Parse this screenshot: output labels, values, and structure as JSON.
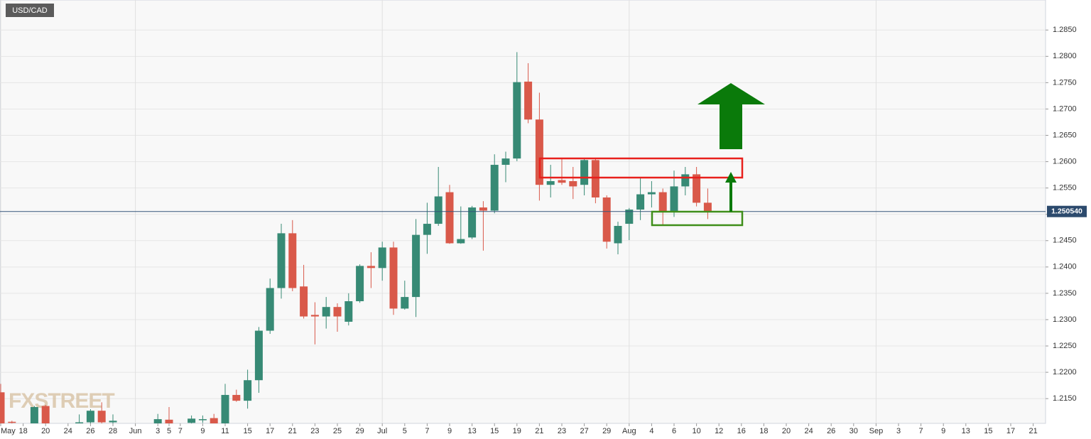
{
  "chart_data": {
    "type": "candlestick",
    "title": "USD/CAD",
    "watermark": "FXSTREET",
    "categories": [
      "May",
      null,
      "18",
      null,
      "20",
      null,
      "24",
      null,
      "26",
      null,
      "28",
      null,
      "Jun",
      null,
      "3",
      "5",
      "7",
      null,
      "9",
      null,
      "11",
      null,
      "15",
      null,
      "17",
      null,
      "21",
      null,
      "23",
      null,
      "25",
      null,
      "29",
      null,
      "Jul",
      null,
      "5",
      null,
      "7",
      null,
      "9",
      null,
      "13",
      null,
      "15",
      null,
      "19",
      null,
      "21",
      null,
      "23",
      null,
      "27",
      null,
      "29",
      null,
      "Aug",
      null,
      "4",
      null,
      "6",
      null,
      "10",
      null,
      "12",
      null,
      "16",
      null,
      "18",
      null,
      "20",
      null,
      "24",
      null,
      "26",
      null,
      "30",
      null,
      "Sep",
      null,
      "3",
      null,
      "7",
      null,
      "9",
      null,
      "13",
      null,
      "15",
      null,
      "17",
      null,
      "21",
      null
    ],
    "open": [
      1.2162,
      1.2106,
      null,
      1.2095,
      1.2136,
      null,
      null,
      1.21,
      1.2105,
      1.2127,
      1.2105,
      null,
      null,
      null,
      1.2103,
      1.211,
      null,
      1.2104,
      1.211,
      1.2113,
      1.2103,
      1.2157,
      1.2146,
      1.2185,
      1.2279,
      1.236,
      1.2464,
      1.2363,
      1.2309,
      1.2306,
      1.2324,
      1.2296,
      1.2335,
      1.2402,
      1.2398,
      1.2437,
      1.2321,
      1.2343,
      1.2461,
      1.2482,
      1.2542,
      1.2445,
      1.2456,
      1.2513,
      1.2507,
      1.2594,
      1.2606,
      1.2752,
      1.268,
      1.2556,
      1.2565,
      1.2563,
      1.2556,
      1.2603,
      1.2532,
      1.2445,
      1.2482,
      1.2509,
      1.2538,
      1.2542,
      1.2505,
      1.2553,
      1.2576,
      1.2522,
      null,
      null,
      null,
      null,
      null,
      null,
      null,
      null,
      null,
      null,
      null,
      null,
      null,
      null,
      null,
      null,
      null,
      null,
      null,
      null,
      null,
      null,
      null,
      null,
      null,
      null,
      null,
      null,
      null,
      null
    ],
    "high": [
      1.2178,
      1.2108,
      null,
      1.2136,
      1.2138,
      null,
      null,
      1.212,
      1.213,
      1.2143,
      1.212,
      null,
      null,
      null,
      1.2121,
      1.2134,
      null,
      1.2118,
      1.2118,
      1.2121,
      1.2178,
      1.2167,
      1.2205,
      1.2286,
      1.2378,
      1.2482,
      1.2489,
      1.2404,
      1.2333,
      1.2343,
      1.2331,
      1.235,
      1.2405,
      1.2428,
      1.2448,
      1.2448,
      1.2374,
      1.2491,
      1.2522,
      1.259,
      1.2556,
      1.2515,
      1.2516,
      1.2525,
      1.2614,
      1.2619,
      1.2808,
      1.2787,
      1.2731,
      1.2594,
      1.2607,
      1.259,
      1.2607,
      1.2607,
      1.2536,
      1.2486,
      1.2512,
      1.2569,
      1.2563,
      1.2549,
      1.2583,
      1.259,
      1.259,
      1.2549,
      null,
      null,
      null,
      null,
      null,
      null,
      null,
      null,
      null,
      null,
      null,
      null,
      null,
      null,
      null,
      null,
      null,
      null,
      null,
      null,
      null,
      null,
      null,
      null,
      null,
      null,
      null,
      null,
      null,
      null
    ],
    "low": [
      1.2095,
      1.2095,
      null,
      1.209,
      1.209,
      null,
      null,
      1.2095,
      1.2098,
      1.2098,
      1.2095,
      null,
      null,
      null,
      1.2098,
      1.2098,
      null,
      1.2098,
      1.2104,
      1.2098,
      1.2098,
      1.2144,
      1.2131,
      1.2161,
      1.2273,
      1.234,
      1.2354,
      1.2302,
      1.2253,
      1.2283,
      1.2277,
      1.2289,
      1.2332,
      1.236,
      1.2374,
      1.2309,
      1.2319,
      1.2305,
      1.2425,
      1.2478,
      1.2444,
      1.2444,
      1.2453,
      1.2431,
      1.2502,
      1.2561,
      1.2601,
      1.2673,
      1.2526,
      1.2532,
      1.2556,
      1.2529,
      1.2536,
      1.2521,
      1.2435,
      1.2424,
      1.2451,
      1.2489,
      1.2513,
      1.2478,
      1.2495,
      1.2536,
      1.2515,
      1.2491,
      null,
      null,
      null,
      null,
      null,
      null,
      null,
      null,
      null,
      null,
      null,
      null,
      null,
      null,
      null,
      null,
      null,
      null,
      null,
      null,
      null,
      null,
      null,
      null,
      null,
      null,
      null,
      null,
      null,
      null
    ],
    "close": [
      1.21,
      1.2104,
      null,
      1.2134,
      1.21,
      null,
      null,
      1.2105,
      1.2127,
      1.2105,
      1.2108,
      null,
      null,
      null,
      1.2111,
      1.2103,
      null,
      1.2112,
      1.2111,
      1.2103,
      1.2157,
      1.2146,
      1.2185,
      1.2279,
      1.236,
      1.2464,
      1.236,
      1.2306,
      1.2306,
      1.2324,
      1.2306,
      1.2335,
      1.2402,
      1.2398,
      1.2437,
      1.2321,
      1.2343,
      1.2461,
      1.2482,
      1.2534,
      1.2445,
      1.2453,
      1.2513,
      1.2507,
      1.2594,
      1.2606,
      1.2751,
      1.268,
      1.2556,
      1.2563,
      1.256,
      1.2553,
      1.2603,
      1.2532,
      1.2448,
      1.2478,
      1.2509,
      1.2538,
      1.2542,
      1.2505,
      1.2553,
      1.2576,
      1.2522,
      1.2506,
      null,
      null,
      null,
      null,
      null,
      null,
      null,
      null,
      null,
      null,
      null,
      null,
      null,
      null,
      null,
      null,
      null,
      null,
      null,
      null,
      null,
      null,
      null,
      null,
      null,
      null,
      null,
      null,
      null,
      null
    ],
    "up_color": "#378a75",
    "down_color": "#d9594a",
    "ylim": [
      1.2103,
      1.2907
    ],
    "yticks": [
      {
        "value": 1.215,
        "label": "1.2150"
      },
      {
        "value": 1.22,
        "label": "1.2200"
      },
      {
        "value": 1.225,
        "label": "1.2250"
      },
      {
        "value": 1.23,
        "label": "1.2300"
      },
      {
        "value": 1.235,
        "label": "1.2350"
      },
      {
        "value": 1.24,
        "label": "1.2400"
      },
      {
        "value": 1.245,
        "label": "1.2450"
      },
      {
        "value": 1.25,
        "label": "1.2500"
      },
      {
        "value": 1.255,
        "label": "1.2550"
      },
      {
        "value": 1.26,
        "label": "1.2600"
      },
      {
        "value": 1.265,
        "label": "1.2650"
      },
      {
        "value": 1.27,
        "label": "1.2700"
      },
      {
        "value": 1.275,
        "label": "1.2750"
      },
      {
        "value": 1.28,
        "label": "1.2800"
      },
      {
        "value": 1.285,
        "label": "1.2850"
      }
    ],
    "last_price": {
      "value": 1.25054,
      "label": "1.250540"
    },
    "grid": true
  }
}
